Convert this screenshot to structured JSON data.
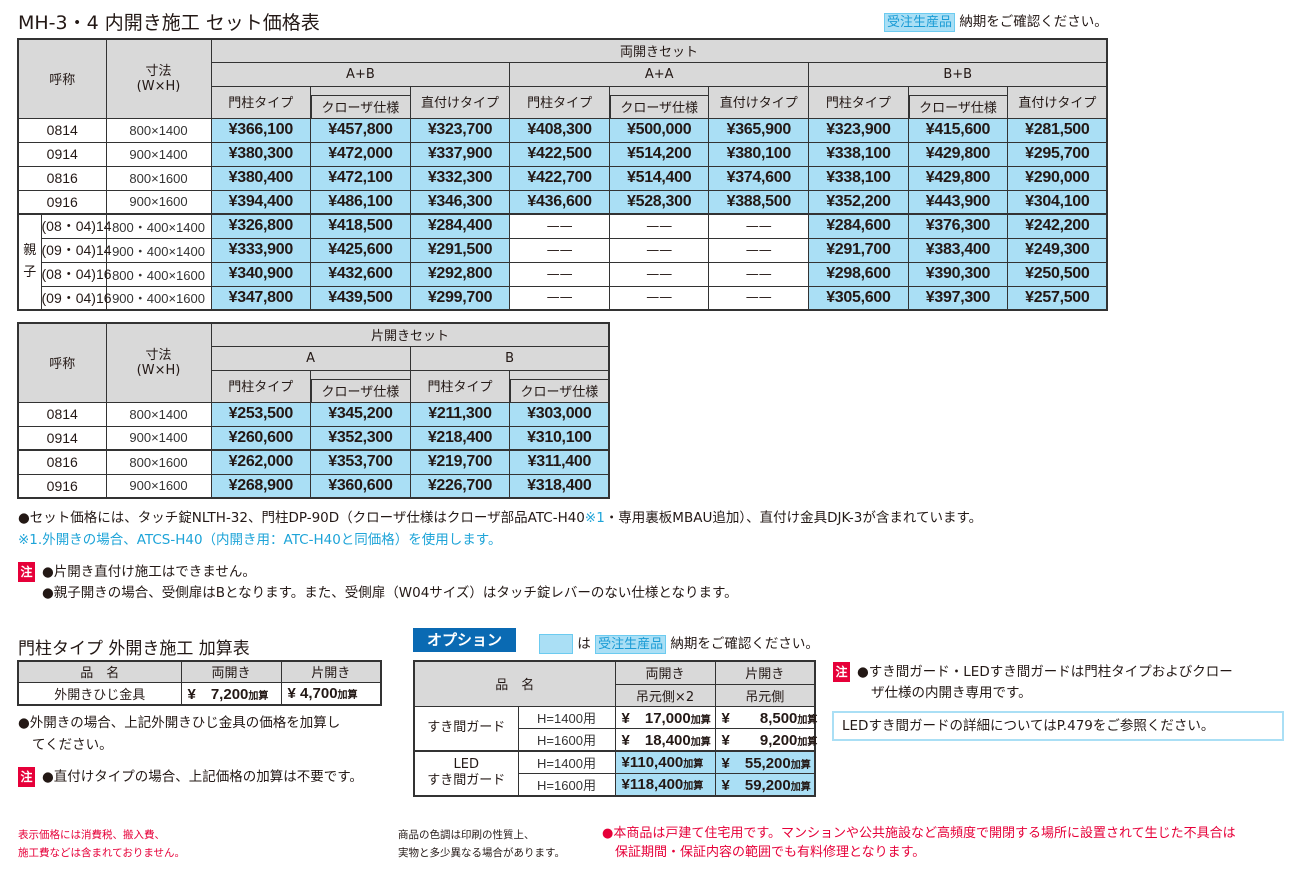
{
  "title": "MH-3・4 内開き施工 セット価格表",
  "top_notice": {
    "badge": "受注生産品",
    "text": "納期をご確認ください。"
  },
  "colors": {
    "price_cell": "#aadff5",
    "header": "#d9d9d9",
    "accent_red": "#e60039",
    "accent_blue": "#1ea4d8",
    "option_label": "#0a6ab3"
  },
  "main_table": {
    "col_name": "呼称",
    "col_size": "寸法\n(W×H)",
    "group": "両開きセット",
    "subgroups": [
      "A+B",
      "A+A",
      "B+B"
    ],
    "types": [
      "門柱タイプ",
      "クローザ仕様",
      "直付けタイプ"
    ],
    "oyako_label": "親子",
    "rows": [
      {
        "code": "0814",
        "size": "800×1400",
        "prices": [
          "¥366,100",
          "¥457,800",
          "¥323,700",
          "¥408,300",
          "¥500,000",
          "¥365,900",
          "¥323,900",
          "¥415,600",
          "¥281,500"
        ]
      },
      {
        "code": "0914",
        "size": "900×1400",
        "prices": [
          "¥380,300",
          "¥472,000",
          "¥337,900",
          "¥422,500",
          "¥514,200",
          "¥380,100",
          "¥338,100",
          "¥429,800",
          "¥295,700"
        ]
      },
      {
        "code": "0816",
        "size": "800×1600",
        "prices": [
          "¥380,400",
          "¥472,100",
          "¥332,300",
          "¥422,700",
          "¥514,400",
          "¥374,600",
          "¥338,100",
          "¥429,800",
          "¥290,000"
        ]
      },
      {
        "code": "0916",
        "size": "900×1600",
        "prices": [
          "¥394,400",
          "¥486,100",
          "¥346,300",
          "¥436,600",
          "¥528,300",
          "¥388,500",
          "¥352,200",
          "¥443,900",
          "¥304,100"
        ]
      },
      {
        "code": "(08・04)14",
        "size": "800・400×1400",
        "prices": [
          "¥326,800",
          "¥418,500",
          "¥284,400",
          "——",
          "——",
          "——",
          "¥284,600",
          "¥376,300",
          "¥242,200"
        ]
      },
      {
        "code": "(09・04)14",
        "size": "900・400×1400",
        "prices": [
          "¥333,900",
          "¥425,600",
          "¥291,500",
          "——",
          "——",
          "——",
          "¥291,700",
          "¥383,400",
          "¥249,300"
        ]
      },
      {
        "code": "(08・04)16",
        "size": "800・400×1600",
        "prices": [
          "¥340,900",
          "¥432,600",
          "¥292,800",
          "——",
          "——",
          "——",
          "¥298,600",
          "¥390,300",
          "¥250,500"
        ]
      },
      {
        "code": "(09・04)16",
        "size": "900・400×1600",
        "prices": [
          "¥347,800",
          "¥439,500",
          "¥299,700",
          "——",
          "——",
          "——",
          "¥305,600",
          "¥397,300",
          "¥257,500"
        ]
      }
    ]
  },
  "single_table": {
    "col_name": "呼称",
    "col_size": "寸法\n(W×H)",
    "group": "片開きセット",
    "subgroups": [
      "A",
      "B"
    ],
    "types": [
      "門柱タイプ",
      "クローザ仕様"
    ],
    "rows": [
      {
        "code": "0814",
        "size": "800×1400",
        "prices": [
          "¥253,500",
          "¥345,200",
          "¥211,300",
          "¥303,000"
        ]
      },
      {
        "code": "0914",
        "size": "900×1400",
        "prices": [
          "¥260,600",
          "¥352,300",
          "¥218,400",
          "¥310,100"
        ]
      },
      {
        "code": "0816",
        "size": "800×1600",
        "prices": [
          "¥262,000",
          "¥353,700",
          "¥219,700",
          "¥311,400"
        ]
      },
      {
        "code": "0916",
        "size": "900×1600",
        "prices": [
          "¥268,900",
          "¥360,600",
          "¥226,700",
          "¥318,400"
        ]
      }
    ]
  },
  "notes": {
    "set_note": "●セット価格には、タッチ錠NLTH-32、門柱DP-90D（クローザ仕様はクローザ部品ATC-H40",
    "set_note_ref": "※1",
    "set_note_tail": "・専用裏板MBAU追加）、直付け金具DJK-3が含まれています。",
    "footnote1": "※1.外開きの場合、ATCS-H40（内開き用：ATC-H40と同価格）を使用します。",
    "chu_label": "注",
    "caution": [
      "●片開き直付け施工はできません。",
      "●親子開きの場合、受側扉はBとなります。また、受側扉（W04サイズ）はタッチ錠レバーのない仕様となります。"
    ]
  },
  "outward": {
    "title": "門柱タイプ 外開き施工 加算表",
    "headers": [
      "品　名",
      "両開き",
      "片開き"
    ],
    "row": {
      "name": "外開きひじ金具",
      "double": "¥　7,200",
      "single": "¥ 4,700",
      "add": "加算"
    },
    "notes": [
      "●外開きの場合、上記外開きひじ金具の価格を加算し",
      "てください。"
    ],
    "caution": "●直付けタイプの場合、上記価格の加算は不要です。"
  },
  "option": {
    "label": "オプション",
    "legend_text": "は",
    "legend_badge": "受注生産品",
    "legend_tail": "納期をご確認ください。",
    "headers": {
      "name": "品　名",
      "double": "両開き",
      "single": "片開き",
      "double_sub": "吊元側×2",
      "single_sub": "吊元側"
    },
    "add": "加算",
    "groups": [
      {
        "name": "すき間ガード",
        "rows": [
          {
            "h": "H=1400用",
            "double": "¥　17,000",
            "single": "¥　　8,500"
          },
          {
            "h": "H=1600用",
            "double": "¥　18,400",
            "single": "¥　　9,200"
          }
        ]
      },
      {
        "name": "LED\nすき間ガード",
        "rows": [
          {
            "h": "H=1400用",
            "double": "¥110,400",
            "single": "¥　55,200"
          },
          {
            "h": "H=1600用",
            "double": "¥118,400",
            "single": "¥　59,200"
          }
        ]
      }
    ],
    "caution": [
      "●すき間ガード・LEDすき間ガードは門柱タイプおよびクロー",
      "ザ仕様の内開き専用です。"
    ],
    "led_box": "LEDすき間ガードの詳細についてはP.479をご参照ください。"
  },
  "footer": {
    "tax": [
      "表示価格には消費税、搬入費、",
      "施工費などは含まれておりません。"
    ],
    "color": [
      "商品の色調は印刷の性質上、",
      "実物と多少異なる場合があります。"
    ],
    "warranty": [
      "●本商品は戸建て住宅用です。マンションや公共施設など高頻度で開閉する場所に設置されて生じた不具合は",
      "　保証期間・保証内容の範囲でも有料修理となります。"
    ]
  }
}
